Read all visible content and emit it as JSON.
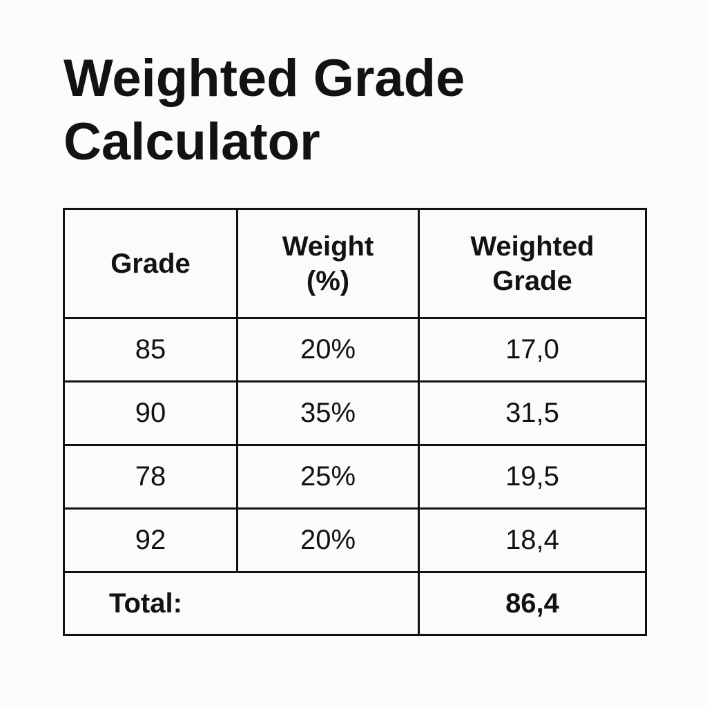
{
  "title": {
    "line1": "Weighted Grade",
    "line2": "Calculator"
  },
  "table": {
    "headers": [
      {
        "line1": "Grade",
        "line2": ""
      },
      {
        "line1": "Weight",
        "line2": "(%)"
      },
      {
        "line1": "Weighted",
        "line2": "Grade"
      }
    ],
    "rows": [
      {
        "grade": "85",
        "weight": "20%",
        "weighted": "17,0"
      },
      {
        "grade": "90",
        "weight": "35%",
        "weighted": "31,5"
      },
      {
        "grade": "78",
        "weight": "25%",
        "weighted": "19,5"
      },
      {
        "grade": "92",
        "weight": "20%",
        "weighted": "18,4"
      }
    ],
    "total": {
      "label": "Total:",
      "value": "86,4"
    }
  },
  "colors": {
    "background": "#fbfbf9",
    "text": "#121212",
    "border": "#111111"
  }
}
